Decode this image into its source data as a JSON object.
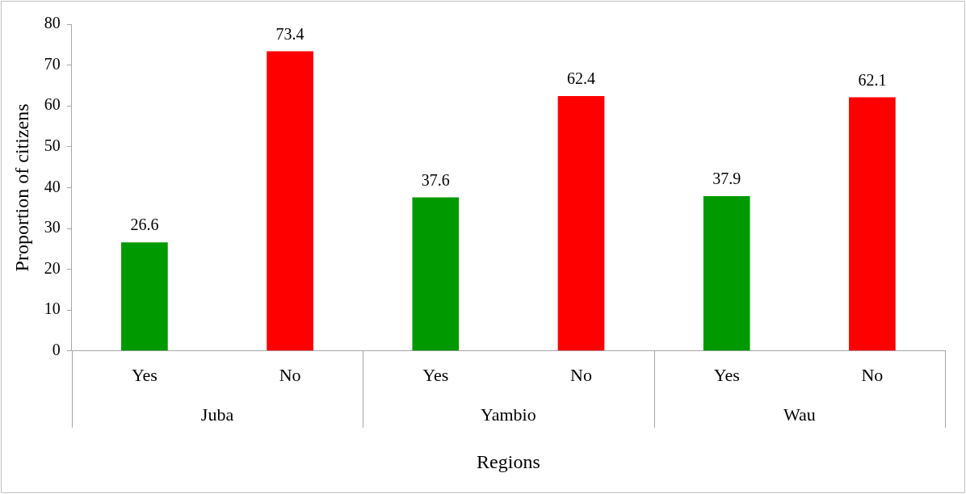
{
  "chart_data": {
    "type": "bar",
    "xlabel": "Regions",
    "ylabel": "Proportion of citizens",
    "categories": [
      "Yes",
      "No",
      "Yes",
      "No",
      "Yes",
      "No"
    ],
    "values": [
      26.6,
      73.4,
      37.6,
      62.4,
      37.9,
      62.1
    ],
    "colors": [
      "#009900",
      "#ff0000",
      "#009900",
      "#ff0000",
      "#009900",
      "#ff0000"
    ],
    "annotations": [
      "Juba",
      "Yambio",
      "Wau"
    ],
    "ylim": [
      0,
      80
    ],
    "yticks": [
      0,
      10,
      20,
      30,
      40,
      50,
      60,
      70,
      80
    ],
    "data_labels": true,
    "grid": false,
    "legend": false
  }
}
